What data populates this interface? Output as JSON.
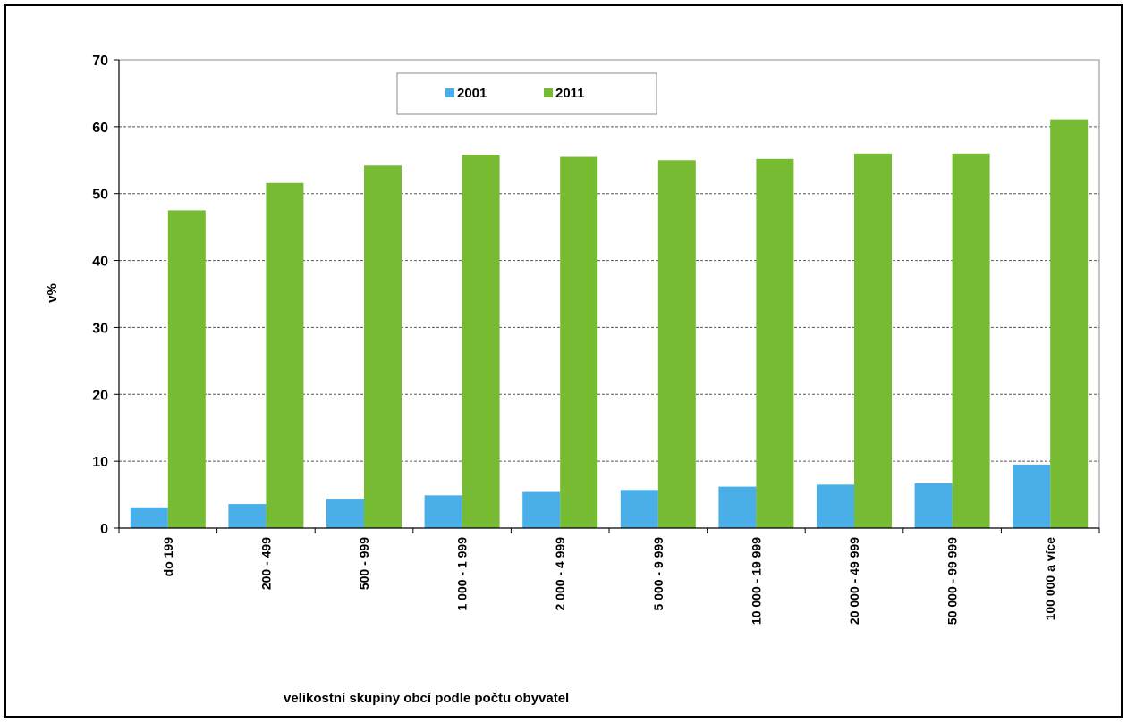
{
  "chart_data": {
    "type": "bar",
    "title": "",
    "xlabel": "velikostní skupiny obcí podle počtu obyvatel",
    "ylabel": "v%",
    "ylim": [
      0,
      70
    ],
    "yticks": [
      0,
      10,
      20,
      30,
      40,
      50,
      60,
      70
    ],
    "grid": "horizontal dashed",
    "legend_position": "top-center",
    "categories": [
      "do  199",
      "200 - 499",
      "500 - 999",
      "1 000 - 1 999",
      "2 000 - 4 999",
      "5 000 - 9 999",
      "10 000 - 19 999",
      "20 000 - 49 999",
      "50 000 - 99 999",
      "100 000 a více"
    ],
    "series": [
      {
        "name": "2001",
        "color": "#4aaee8",
        "values": [
          3.1,
          3.6,
          4.4,
          4.9,
          5.4,
          5.7,
          6.2,
          6.5,
          6.7,
          9.5
        ]
      },
      {
        "name": "2011",
        "color": "#77bb33",
        "values": [
          47.5,
          51.6,
          54.2,
          55.8,
          55.5,
          55.0,
          55.2,
          56.0,
          56.0,
          61.1
        ]
      }
    ]
  }
}
